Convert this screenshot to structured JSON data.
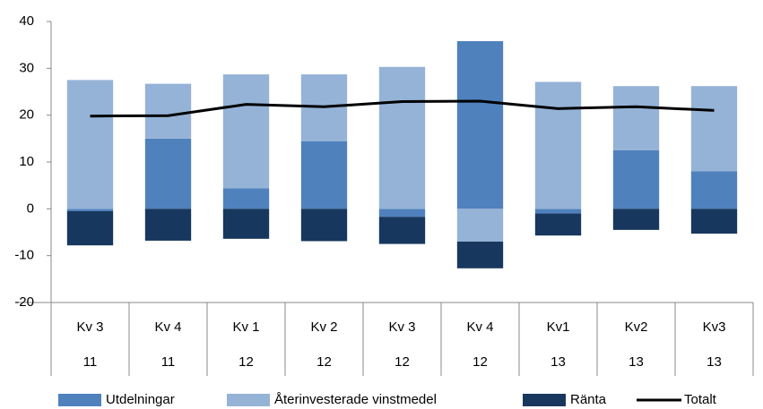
{
  "chart_data": {
    "type": "bar",
    "categories": [
      "Kv 3",
      "Kv 4",
      "Kv 1",
      "Kv 2",
      "Kv 3",
      "Kv 4",
      "Kv1",
      "Kv2",
      "Kv3"
    ],
    "category_groups": [
      "11",
      "11",
      "12",
      "12",
      "12",
      "12",
      "13",
      "13",
      "13"
    ],
    "stacked": true,
    "series": [
      {
        "name": "Utdelningar",
        "color": "#4f81bd",
        "values": [
          -0.5,
          15,
          4.4,
          14.4,
          -1.7,
          35.8,
          -1,
          12.5,
          8
        ]
      },
      {
        "name": "Återinvesterade vinstmedel",
        "color": "#95b3d7",
        "values": [
          27.5,
          11.7,
          24.3,
          14.3,
          30.3,
          -7,
          27.1,
          13.7,
          18.2
        ]
      },
      {
        "name": "Ränta",
        "color": "#17375e",
        "values": [
          -7.3,
          -6.8,
          -6.4,
          -6.9,
          -5.8,
          -5.7,
          -4.7,
          -4.5,
          -5.3
        ]
      },
      {
        "name": "Totalt",
        "type": "line",
        "color": "#000000",
        "values": [
          19.8,
          19.9,
          22.3,
          21.8,
          22.9,
          23.0,
          21.4,
          21.8,
          21.0
        ]
      }
    ],
    "ylim": [
      -20,
      40
    ],
    "yticks": [
      -20,
      -10,
      0,
      10,
      20,
      30,
      40
    ],
    "grid": false,
    "legend": "bottom"
  }
}
